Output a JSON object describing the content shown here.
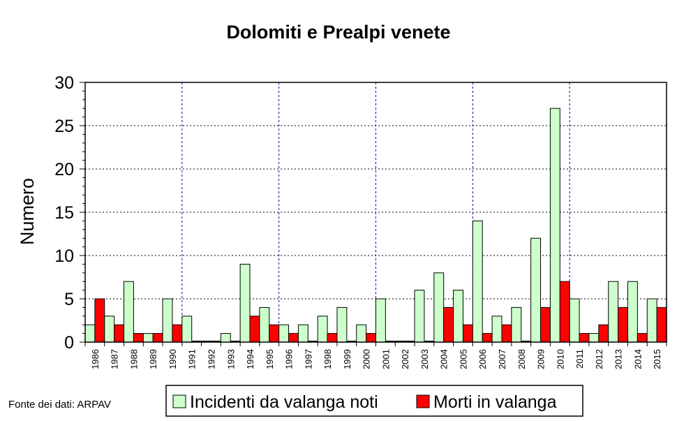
{
  "source_note": "Fonte dei dati: ARPAV",
  "chart_data": {
    "type": "bar",
    "title": "Dolomiti e Prealpi venete",
    "ylabel": "Numero",
    "xlabel": "",
    "ylim": [
      0,
      30
    ],
    "yticks": [
      0,
      5,
      10,
      15,
      20,
      25,
      30
    ],
    "grid": true,
    "legend_position": "bottom",
    "categories": [
      "1986",
      "1987",
      "1988",
      "1989",
      "1990",
      "1991",
      "1992",
      "1993",
      "1994",
      "1995",
      "1996",
      "1997",
      "1998",
      "1999",
      "2000",
      "2001",
      "2002",
      "2003",
      "2004",
      "2005",
      "2006",
      "2007",
      "2008",
      "2009",
      "2010",
      "2011",
      "2012",
      "2013",
      "2014",
      "2015"
    ],
    "series": [
      {
        "name": "Incidenti da valanga noti",
        "color": "#ccffcc",
        "values": [
          2,
          3,
          7,
          1,
          5,
          3,
          0,
          1,
          9,
          4,
          2,
          2,
          3,
          4,
          2,
          5,
          0,
          6,
          8,
          6,
          14,
          3,
          4,
          12,
          27,
          5,
          1,
          7,
          7,
          5
        ]
      },
      {
        "name": "Morti in valanga",
        "color": "#ff0000",
        "values": [
          5,
          2,
          1,
          1,
          2,
          0,
          0,
          0,
          3,
          2,
          1,
          0,
          1,
          0,
          1,
          0,
          0,
          0,
          4,
          2,
          1,
          2,
          0,
          4,
          7,
          1,
          2,
          4,
          1,
          4
        ]
      }
    ]
  }
}
